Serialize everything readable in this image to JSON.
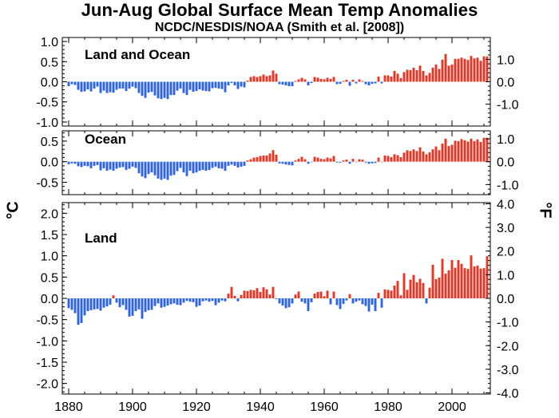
{
  "title": "Jun-Aug Global Surface Mean Temp Anomalies",
  "subtitle": "NCDC/NESDIS/NOAA (Smith et al. [2008])",
  "unit_left": "°C",
  "unit_right": "°F",
  "colors": {
    "positive": "#ee3322",
    "negative": "#2e62f0",
    "axis": "#000000"
  },
  "chart_data": [
    {
      "type": "bar",
      "title": "Land and Ocean",
      "ylabel": "°C",
      "ylabel_right": "°F",
      "xlim": [
        1878,
        2012
      ],
      "ylim": [
        -1.1,
        1.1
      ],
      "yticks_left": [
        "1.0",
        "0.5",
        "0.0",
        "-0.5",
        "-1.0"
      ],
      "yticks_left_values": [
        1.0,
        0.5,
        0.0,
        -0.5,
        -1.0
      ],
      "yticks_right": [
        "1.0",
        "0.0",
        "-1.0"
      ],
      "yticks_right_values_f": [
        1.0,
        0.0,
        -1.0
      ],
      "x_start": 1880,
      "values": [
        -0.11,
        -0.06,
        -0.08,
        -0.2,
        -0.25,
        -0.24,
        -0.19,
        -0.24,
        -0.17,
        -0.12,
        -0.28,
        -0.22,
        -0.28,
        -0.26,
        -0.27,
        -0.2,
        -0.17,
        -0.17,
        -0.23,
        -0.17,
        -0.12,
        -0.16,
        -0.28,
        -0.35,
        -0.4,
        -0.27,
        -0.25,
        -0.34,
        -0.41,
        -0.43,
        -0.4,
        -0.43,
        -0.33,
        -0.33,
        -0.22,
        -0.17,
        -0.28,
        -0.33,
        -0.2,
        -0.25,
        -0.23,
        -0.19,
        -0.22,
        -0.23,
        -0.24,
        -0.16,
        -0.15,
        -0.17,
        -0.18,
        -0.26,
        -0.09,
        -0.03,
        -0.09,
        -0.18,
        -0.12,
        -0.14,
        0.03,
        0.12,
        0.14,
        0.12,
        0.14,
        0.18,
        0.14,
        0.16,
        0.28,
        0.2,
        -0.06,
        -0.07,
        -0.09,
        -0.11,
        -0.11,
        0.02,
        0.06,
        0.1,
        0.06,
        -0.09,
        -0.03,
        0.12,
        0.1,
        0.07,
        0.06,
        0.1,
        0.07,
        0.12,
        -0.06,
        -0.05,
        0.02,
        0.05,
        -0.1,
        0.05,
        -0.04,
        0.06,
        0.02,
        -0.06,
        -0.09,
        -0.05,
        -0.04,
        0.13,
        -0.04,
        0.16,
        0.16,
        0.13,
        0.27,
        0.2,
        0.09,
        0.24,
        0.3,
        0.29,
        0.35,
        0.29,
        0.4,
        0.27,
        0.16,
        0.22,
        0.35,
        0.43,
        0.32,
        0.55,
        0.69,
        0.4,
        0.43,
        0.57,
        0.57,
        0.6,
        0.57,
        0.54,
        0.64,
        0.58,
        0.6,
        0.52,
        0.63,
        0.63
      ],
      "tick_labels": [
        "1880",
        "1900",
        "1920",
        "1940",
        "1960",
        "1980",
        "2000"
      ]
    },
    {
      "type": "bar",
      "title": "Ocean",
      "ylim": [
        -0.8,
        0.75
      ],
      "yticks_left": [
        "0.5",
        "0.0",
        "-0.5"
      ],
      "yticks_left_values": [
        0.5,
        0.0,
        -0.5
      ],
      "yticks_right": [
        "1.0",
        "0.0",
        "-1.0"
      ],
      "yticks_right_values_f": [
        1.0,
        0.0,
        -1.0
      ],
      "x_start": 1880,
      "values": [
        -0.06,
        -0.04,
        -0.05,
        -0.11,
        -0.13,
        -0.1,
        -0.11,
        -0.16,
        -0.1,
        -0.08,
        -0.21,
        -0.16,
        -0.22,
        -0.19,
        -0.22,
        -0.17,
        -0.14,
        -0.13,
        -0.2,
        -0.17,
        -0.12,
        -0.15,
        -0.28,
        -0.36,
        -0.4,
        -0.3,
        -0.26,
        -0.33,
        -0.41,
        -0.44,
        -0.41,
        -0.44,
        -0.34,
        -0.32,
        -0.23,
        -0.15,
        -0.26,
        -0.35,
        -0.22,
        -0.28,
        -0.26,
        -0.22,
        -0.2,
        -0.22,
        -0.2,
        -0.15,
        -0.12,
        -0.16,
        -0.17,
        -0.22,
        -0.1,
        -0.07,
        -0.1,
        -0.14,
        -0.12,
        -0.1,
        0.03,
        0.06,
        0.1,
        0.11,
        0.14,
        0.15,
        0.15,
        0.2,
        0.28,
        0.17,
        -0.04,
        -0.05,
        -0.07,
        -0.08,
        -0.09,
        0.03,
        0.07,
        0.12,
        0.06,
        -0.05,
        -0.01,
        0.12,
        0.1,
        0.07,
        0.06,
        0.1,
        0.08,
        0.14,
        -0.02,
        -0.02,
        0.03,
        0.05,
        -0.05,
        0.07,
        -0.01,
        0.06,
        0.05,
        -0.02,
        -0.05,
        -0.04,
        -0.03,
        0.1,
        0.0,
        0.15,
        0.14,
        0.11,
        0.18,
        0.16,
        0.11,
        0.22,
        0.28,
        0.26,
        0.3,
        0.26,
        0.35,
        0.25,
        0.18,
        0.23,
        0.3,
        0.37,
        0.28,
        0.44,
        0.56,
        0.38,
        0.41,
        0.51,
        0.5,
        0.55,
        0.52,
        0.49,
        0.56,
        0.5,
        0.54,
        0.48,
        0.58,
        0.58
      ]
    },
    {
      "type": "bar",
      "title": "Land",
      "ylim": [
        -2.25,
        2.25
      ],
      "yticks_left": [
        "2.0",
        "1.5",
        "1.0",
        "0.5",
        "0.0",
        "-0.5",
        "-1.0",
        "-1.5",
        "-2.0"
      ],
      "yticks_left_values": [
        2.0,
        1.5,
        1.0,
        0.5,
        0.0,
        -0.5,
        -1.0,
        -1.5,
        -2.0
      ],
      "yticks_right": [
        "4.0",
        "3.0",
        "2.0",
        "1.0",
        "0.0",
        "-1.0",
        "-2.0",
        "-3.0",
        "-4.0"
      ],
      "yticks_right_values_f": [
        4.0,
        3.0,
        2.0,
        1.0,
        0.0,
        -1.0,
        -2.0,
        -3.0,
        -4.0
      ],
      "x_start": 1880,
      "values": [
        -0.23,
        -0.27,
        -0.35,
        -0.62,
        -0.58,
        -0.4,
        -0.3,
        -0.28,
        -0.26,
        -0.25,
        -0.29,
        -0.22,
        -0.19,
        -0.15,
        0.07,
        -0.1,
        -0.21,
        -0.16,
        -0.27,
        -0.43,
        -0.41,
        -0.3,
        -0.26,
        -0.48,
        -0.32,
        -0.28,
        -0.27,
        -0.18,
        -0.12,
        -0.22,
        -0.2,
        -0.17,
        -0.14,
        -0.12,
        -0.15,
        -0.16,
        -0.1,
        -0.06,
        -0.08,
        -0.09,
        -0.2,
        -0.17,
        -0.07,
        -0.05,
        -0.08,
        -0.06,
        -0.16,
        -0.1,
        -0.05,
        -0.07,
        0.11,
        0.27,
        0.06,
        -0.07,
        0.08,
        0.18,
        0.17,
        0.2,
        0.19,
        0.24,
        0.15,
        0.26,
        0.21,
        0.09,
        0.27,
        -0.02,
        -0.12,
        -0.17,
        -0.23,
        -0.21,
        -0.12,
        0.09,
        0.16,
        -0.08,
        -0.12,
        -0.3,
        -0.09,
        0.11,
        0.15,
        0.16,
        0.05,
        0.18,
        -0.14,
        0.16,
        -0.16,
        -0.25,
        -0.13,
        -0.05,
        0.1,
        -0.12,
        -0.08,
        -0.05,
        -0.14,
        -0.18,
        -0.31,
        -0.15,
        -0.3,
        0.13,
        -0.22,
        0.21,
        0.2,
        0.18,
        0.3,
        0.41,
        0.07,
        0.59,
        0.2,
        0.44,
        0.55,
        0.38,
        0.46,
        0.36,
        -0.12,
        0.25,
        0.79,
        0.45,
        0.49,
        0.93,
        0.58,
        0.66,
        0.9,
        0.72,
        0.9,
        0.81,
        0.71,
        0.69,
        1.01,
        0.75,
        0.77,
        0.7,
        0.71,
        0.99
      ]
    }
  ]
}
